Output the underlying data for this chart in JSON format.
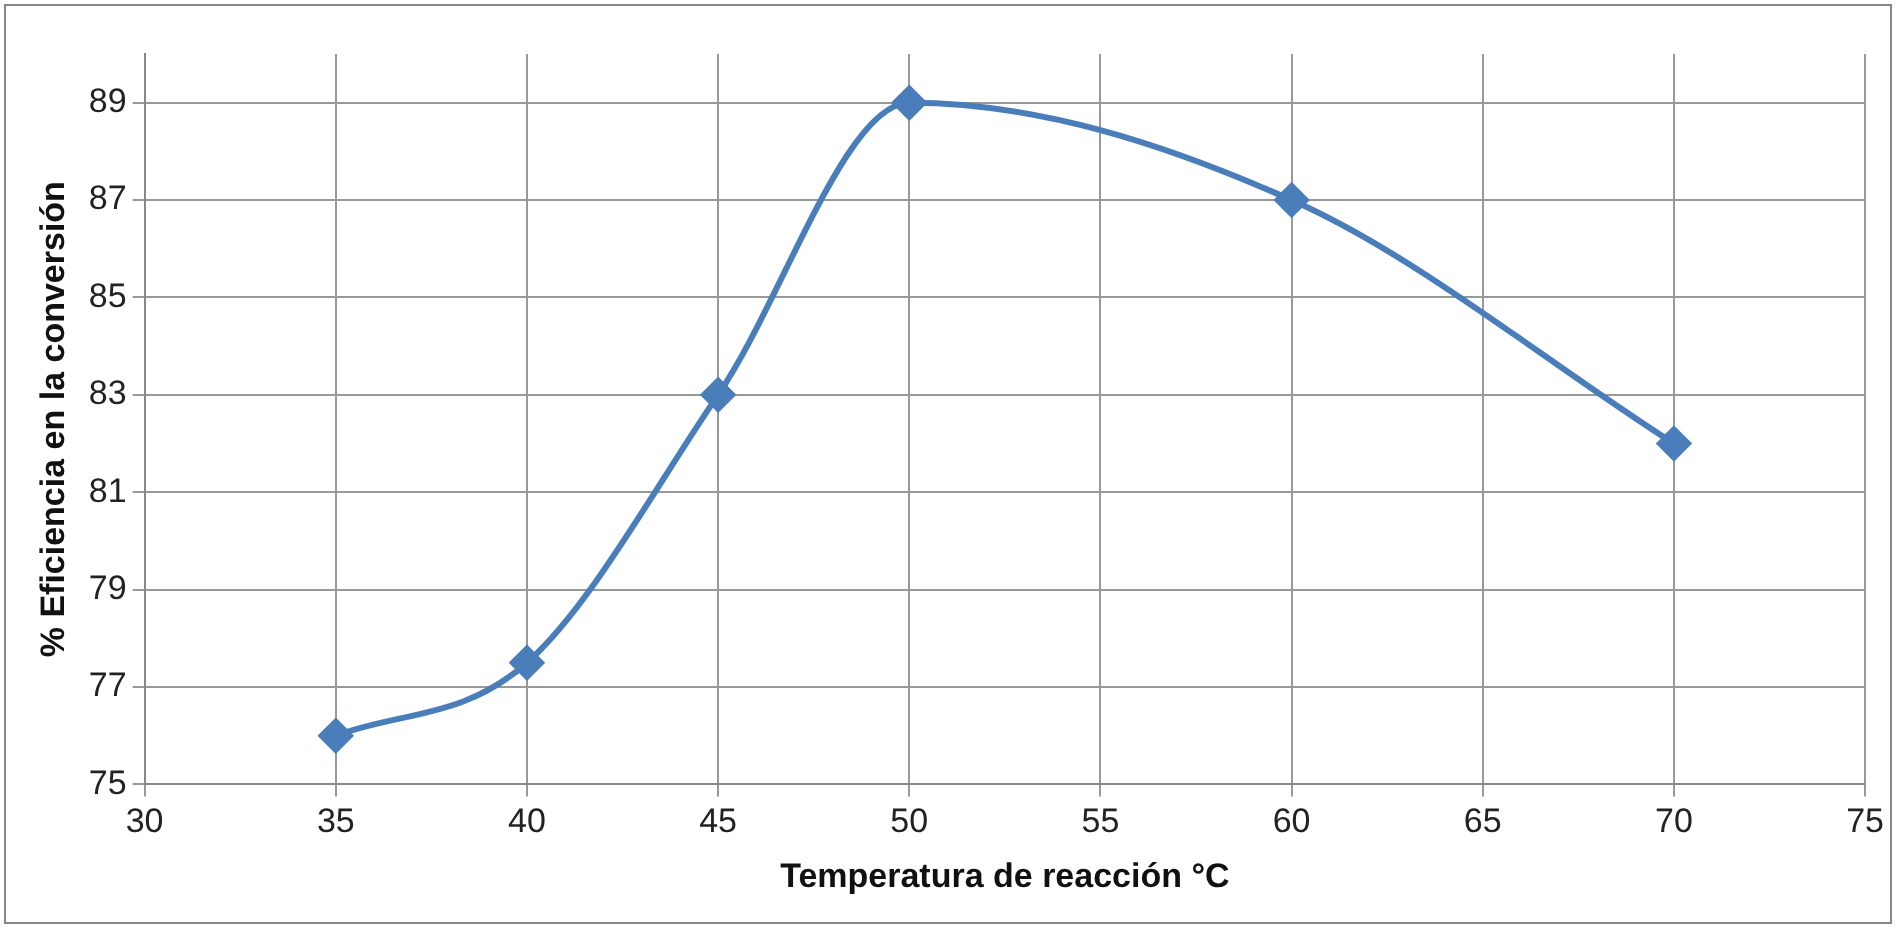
{
  "chart_data": {
    "type": "line",
    "xlabel": "Temperatura de reacción °C",
    "ylabel": "% Eficiencia en la conversión",
    "x": [
      35,
      40,
      45,
      50,
      60,
      70
    ],
    "series": [
      {
        "color": "#4a7ebb",
        "values": [
          76,
          77.5,
          83,
          89,
          87,
          82
        ]
      }
    ],
    "xlim": [
      30,
      75
    ],
    "xticks": [
      30,
      35,
      40,
      45,
      50,
      55,
      60,
      65,
      70,
      75
    ],
    "ylim": [
      75,
      90
    ],
    "yticks": [
      75,
      77,
      79,
      81,
      83,
      85,
      87,
      89
    ],
    "grid": true,
    "legend": false,
    "marker": "diamond",
    "line_style": "solid"
  }
}
